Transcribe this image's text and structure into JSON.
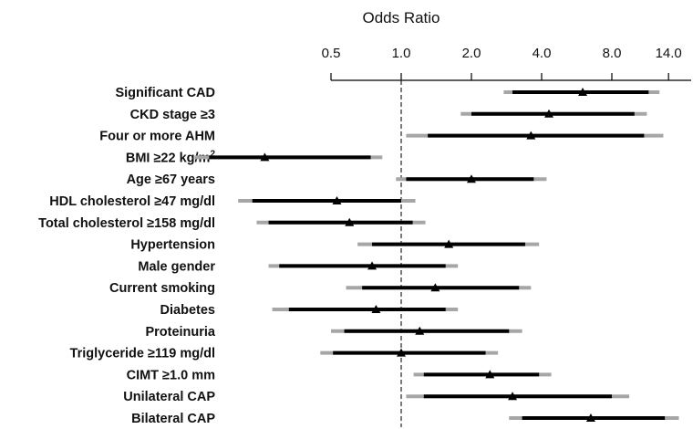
{
  "chart_data": {
    "type": "forest",
    "xlabel": "Odds Ratio",
    "scale": "log",
    "xlim": [
      0.5,
      20.0
    ],
    "ticks": [
      {
        "value": 0.5,
        "label": "0.5"
      },
      {
        "value": 1.0,
        "label": "1.0"
      },
      {
        "value": 2.0,
        "label": "2.0"
      },
      {
        "value": 4.0,
        "label": "4.0"
      },
      {
        "value": 8.0,
        "label": "8.0"
      },
      {
        "value": 14.0,
        "label": "14.0"
      }
    ],
    "reference_line": 1.0,
    "colors": {
      "ci_inner": "#000000",
      "ci_outer": "#a6a6a6",
      "point": "#000000"
    },
    "rows": [
      {
        "label": "Significant CAD",
        "or": 6.0,
        "inner": [
          3.0,
          11.5
        ],
        "outer": [
          2.75,
          12.8
        ]
      },
      {
        "label": "CKD stage ≥3",
        "or": 4.3,
        "inner": [
          2.0,
          10.0
        ],
        "outer": [
          1.8,
          11.3
        ]
      },
      {
        "label": "Four or more AHM",
        "or": 3.6,
        "inner": [
          1.3,
          11.0
        ],
        "outer": [
          1.05,
          13.3
        ]
      },
      {
        "label": "BMI ≥22 kg/m",
        "label_sup": "2",
        "or": 0.26,
        "inner": [
          0.15,
          0.74
        ],
        "outer": [
          0.13,
          0.83
        ]
      },
      {
        "label": "Age ≥67 years",
        "or": 2.0,
        "inner": [
          1.05,
          3.7
        ],
        "outer": [
          0.95,
          4.2
        ]
      },
      {
        "label": "HDL cholesterol ≥47 mg/dl",
        "or": 0.53,
        "inner": [
          0.23,
          1.0
        ],
        "outer": [
          0.2,
          1.15
        ]
      },
      {
        "label": "Total cholesterol ≥158 mg/dl",
        "or": 0.6,
        "inner": [
          0.27,
          1.12
        ],
        "outer": [
          0.24,
          1.27
        ]
      },
      {
        "label": "Hypertension",
        "or": 1.6,
        "inner": [
          0.75,
          3.4
        ],
        "outer": [
          0.65,
          3.9
        ]
      },
      {
        "label": "Male gender",
        "or": 0.75,
        "inner": [
          0.3,
          1.55
        ],
        "outer": [
          0.27,
          1.75
        ]
      },
      {
        "label": "Current smoking",
        "or": 1.4,
        "inner": [
          0.68,
          3.2
        ],
        "outer": [
          0.58,
          3.6
        ]
      },
      {
        "label": "Diabetes",
        "or": 0.78,
        "inner": [
          0.33,
          1.55
        ],
        "outer": [
          0.28,
          1.75
        ]
      },
      {
        "label": "Proteinuria",
        "or": 1.2,
        "inner": [
          0.57,
          2.9
        ],
        "outer": [
          0.5,
          3.3
        ]
      },
      {
        "label": "Triglyceride ≥119 mg/dl",
        "or": 1.0,
        "inner": [
          0.51,
          2.3
        ],
        "outer": [
          0.45,
          2.6
        ]
      },
      {
        "label": "CIMT ≥1.0 mm",
        "or": 2.4,
        "inner": [
          1.25,
          3.9
        ],
        "outer": [
          1.13,
          4.4
        ]
      },
      {
        "label": "Unilateral CAP",
        "or": 3.0,
        "inner": [
          1.25,
          8.0
        ],
        "outer": [
          1.05,
          9.5
        ]
      },
      {
        "label": "Bilateral CAP",
        "or": 6.5,
        "inner": [
          3.3,
          13.5
        ],
        "outer": [
          2.9,
          15.5
        ]
      }
    ]
  }
}
